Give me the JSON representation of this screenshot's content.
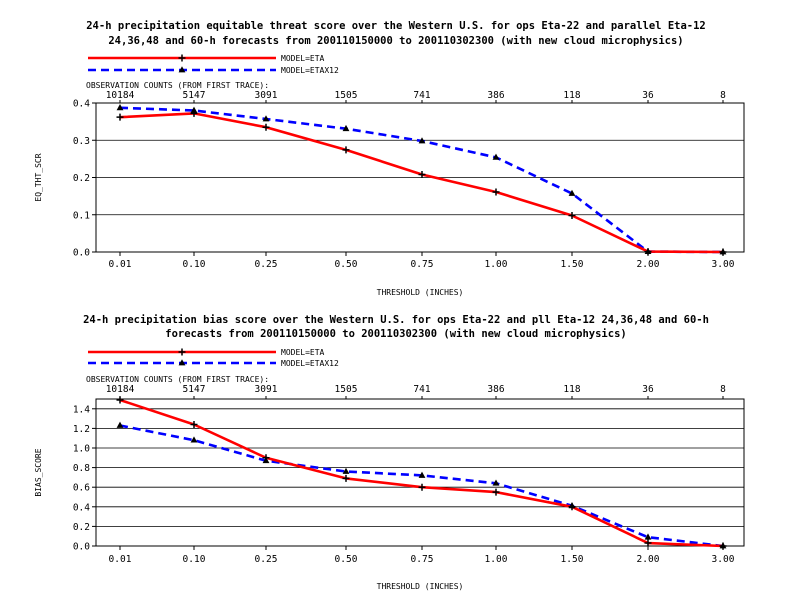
{
  "chart_data": [
    {
      "type": "line",
      "title_lines": [
        "24-h precipitation equitable threat score over the Western U.S. for ops Eta-22 and parallel Eta-12",
        "24,36,48 and 60-h forecasts from 200110150000 to 200110302300 (with new cloud microphysics)"
      ],
      "categories": [
        "0.01",
        "0.10",
        "0.25",
        "0.50",
        "0.75",
        "1.00",
        "1.50",
        "2.00",
        "3.00"
      ],
      "obs_label": "OBSERVATION COUNTS (FROM FIRST TRACE):",
      "obs_counts": [
        "10184",
        "5147",
        "3091",
        "1505",
        "741",
        "386",
        "118",
        "36",
        "8"
      ],
      "xlabel": "THRESHOLD (INCHES)",
      "ylabel": "EQ_THT_SCR",
      "ylim": [
        0,
        0.4
      ],
      "yticks": [
        "0.0",
        "0.1",
        "0.2",
        "0.3",
        "0.4"
      ],
      "grid": "horizontal",
      "legend_position": "top-left",
      "series": [
        {
          "name": "MODEL=ETA",
          "color": "#ff0000",
          "dash": "solid",
          "marker": "plus",
          "values": [
            0.362,
            0.372,
            0.335,
            0.274,
            0.208,
            0.161,
            0.098,
            0.001,
            0.0
          ]
        },
        {
          "name": "MODEL=ETAX12",
          "color": "#0000ff",
          "dash": "dashed",
          "marker": "triangle",
          "values": [
            0.387,
            0.38,
            0.357,
            0.331,
            0.298,
            0.254,
            0.157,
            0.001,
            0.0
          ]
        }
      ]
    },
    {
      "type": "line",
      "title_lines": [
        "24-h precipitation bias score over the Western U.S. for ops Eta-22 and pll Eta-12 24,36,48 and 60-h",
        "forecasts from 200110150000 to 200110302300 (with new cloud microphysics)"
      ],
      "categories": [
        "0.01",
        "0.10",
        "0.25",
        "0.50",
        "0.75",
        "1.00",
        "1.50",
        "2.00",
        "3.00"
      ],
      "obs_label": "OBSERVATION COUNTS (FROM FIRST TRACE):",
      "obs_counts": [
        "10184",
        "5147",
        "3091",
        "1505",
        "741",
        "386",
        "118",
        "36",
        "8"
      ],
      "xlabel": "THRESHOLD (INCHES)",
      "ylabel": "BIAS_SCORE",
      "ylim": [
        0,
        1.5
      ],
      "yticks": [
        "0.0",
        "0.2",
        "0.4",
        "0.6",
        "0.8",
        "1.0",
        "1.2",
        "1.4"
      ],
      "grid": "horizontal",
      "legend_position": "top-left",
      "series": [
        {
          "name": "MODEL=ETA",
          "color": "#ff0000",
          "dash": "solid",
          "marker": "plus",
          "values": [
            1.49,
            1.24,
            0.9,
            0.69,
            0.6,
            0.55,
            0.4,
            0.03,
            0.0
          ]
        },
        {
          "name": "MODEL=ETAX12",
          "color": "#0000ff",
          "dash": "dashed",
          "marker": "triangle",
          "values": [
            1.23,
            1.08,
            0.87,
            0.76,
            0.72,
            0.64,
            0.41,
            0.09,
            0.0
          ]
        }
      ]
    }
  ]
}
